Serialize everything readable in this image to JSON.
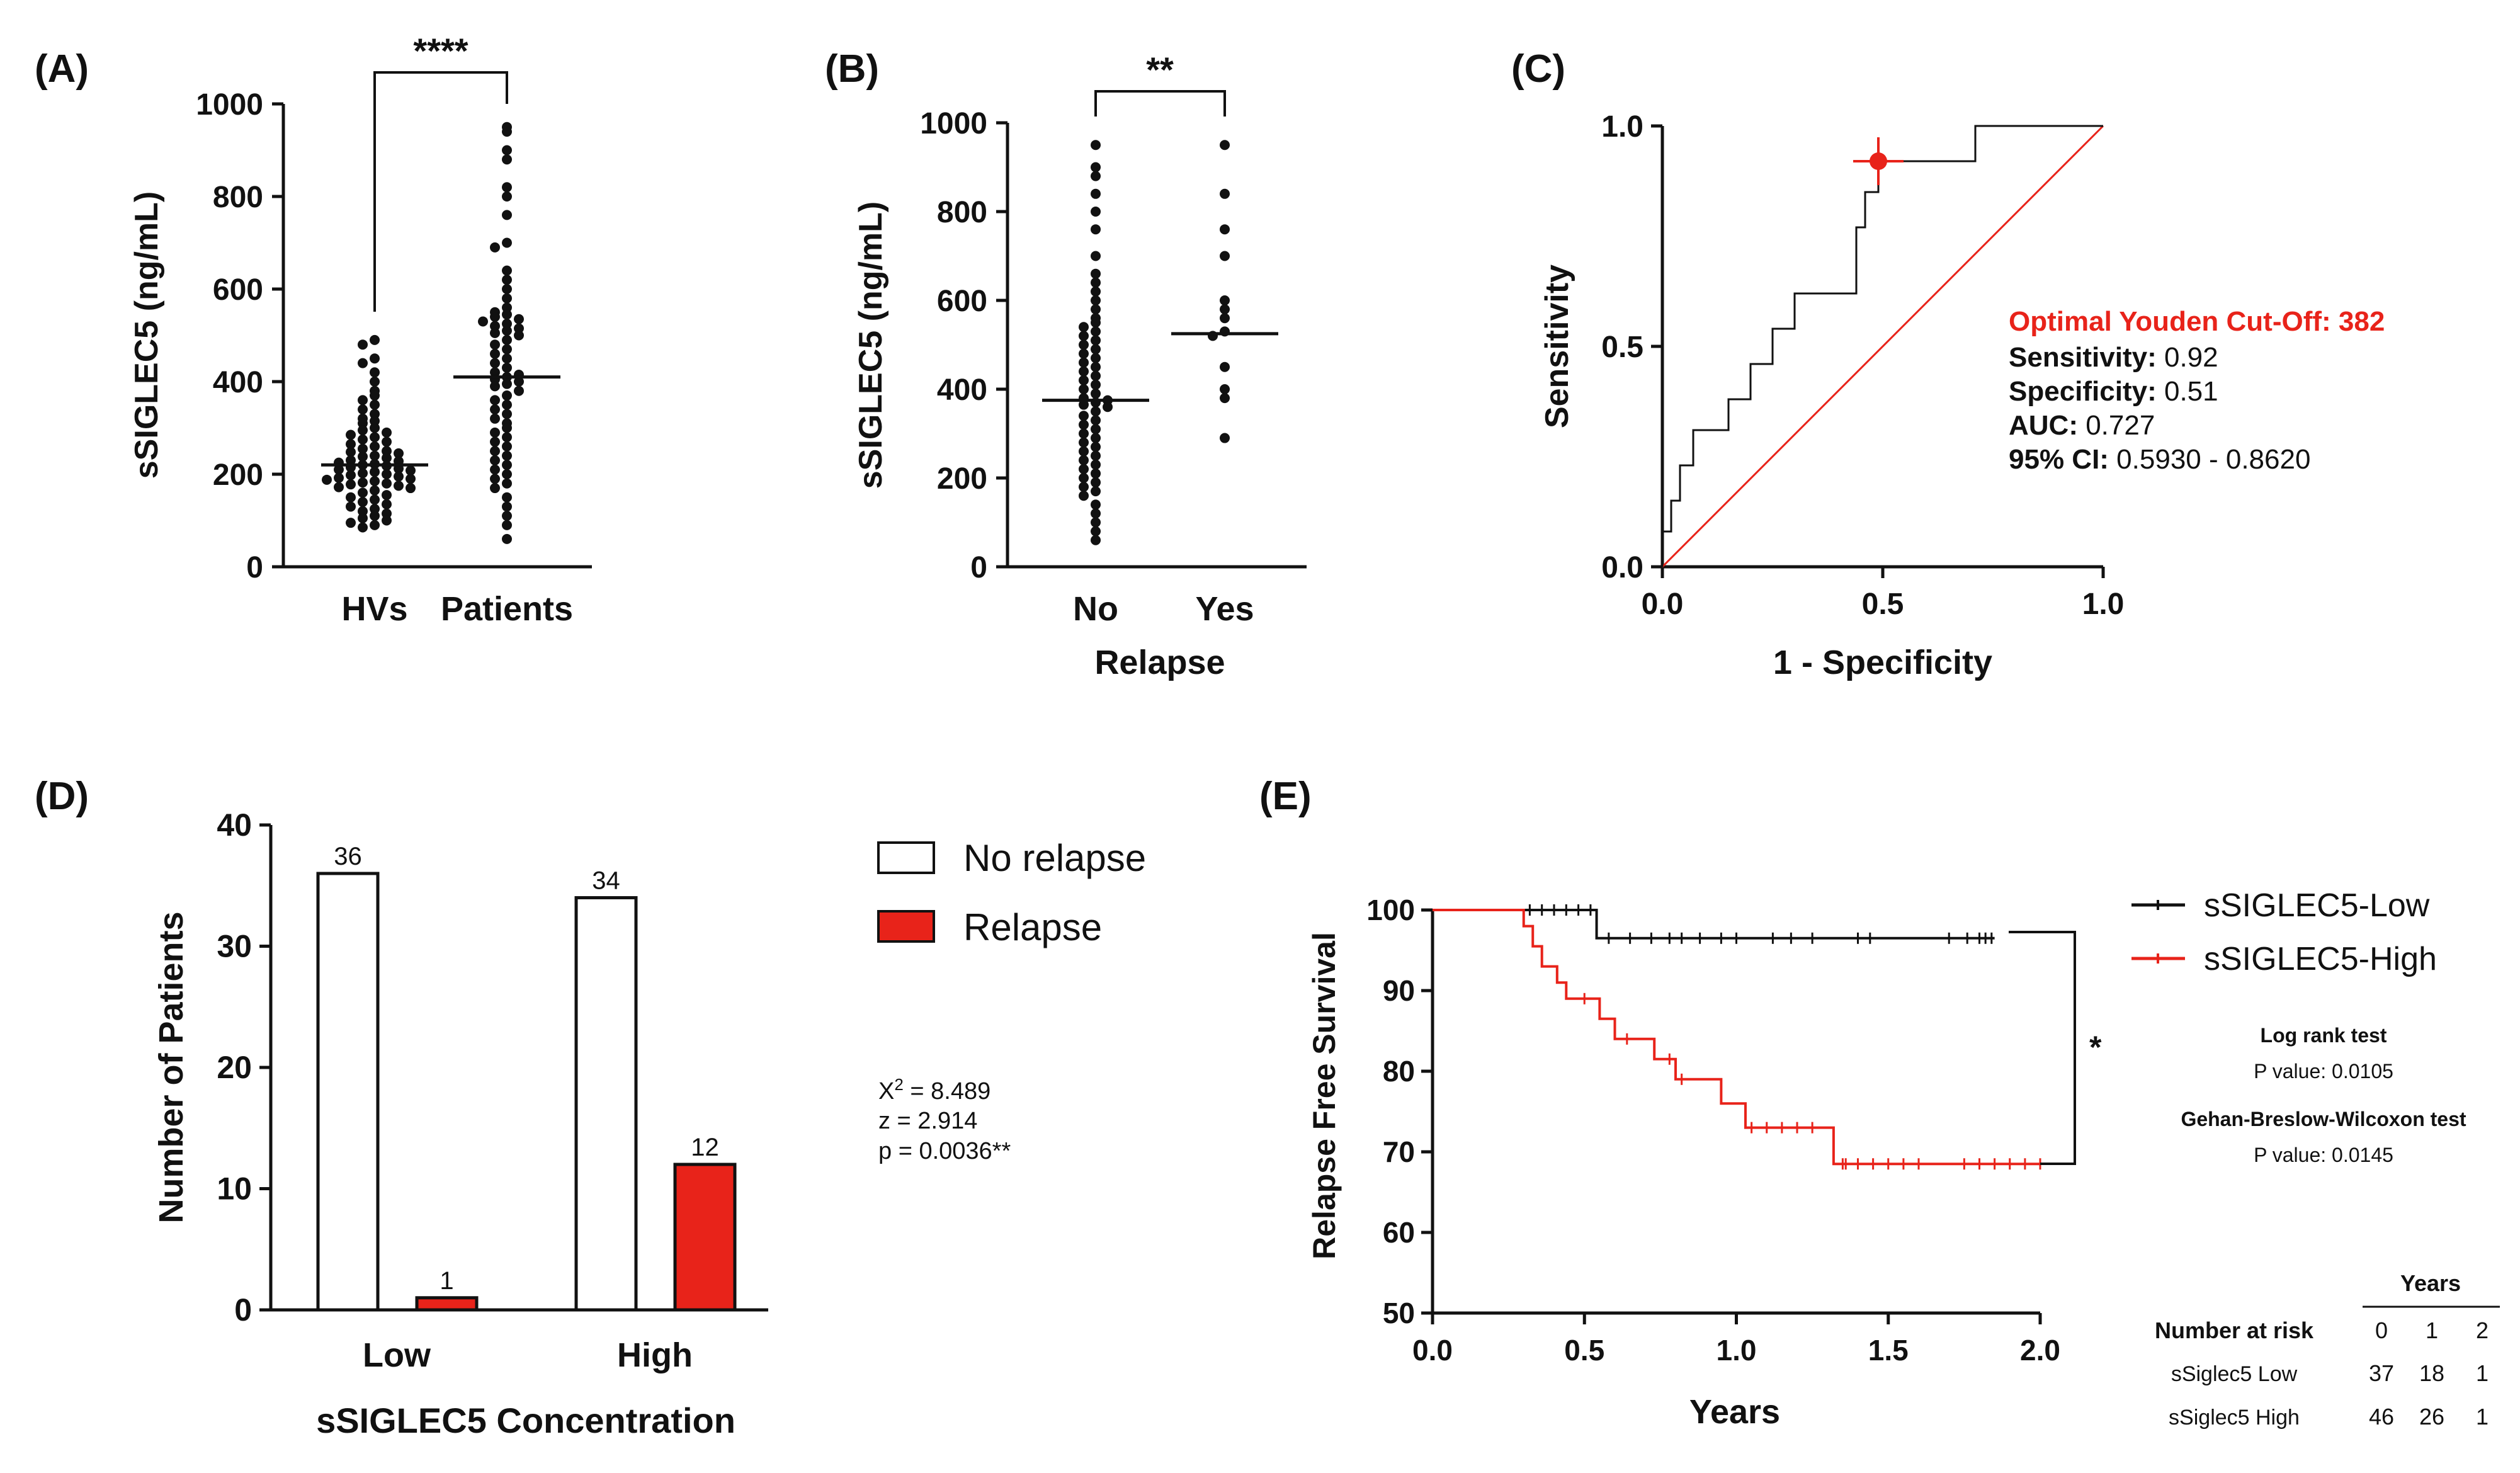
{
  "panel_labels": {
    "a": "(A)",
    "b": "(B)",
    "c": "(C)",
    "d": "(D)",
    "e": "(E)"
  },
  "colors": {
    "red": "#e8231a",
    "black": "#111111"
  },
  "chart_data": [
    {
      "id": "A",
      "type": "scatter",
      "ylabel": "sSIGLEC5 (ng/mL)",
      "ylim": [
        0,
        1000
      ],
      "yticks": [
        "0",
        "200",
        "400",
        "600",
        "800",
        "1000"
      ],
      "categories": [
        "HVs",
        "Patients"
      ],
      "significance": "****",
      "medians": [
        220,
        410
      ],
      "groups": [
        {
          "name": "HVs",
          "values": [
            490,
            480,
            450,
            440,
            420,
            400,
            380,
            370,
            360,
            350,
            340,
            330,
            320,
            315,
            310,
            300,
            295,
            290,
            285,
            280,
            275,
            270,
            265,
            260,
            255,
            250,
            248,
            245,
            240,
            238,
            235,
            230,
            228,
            225,
            222,
            220,
            218,
            215,
            212,
            210,
            208,
            205,
            202,
            200,
            198,
            195,
            192,
            190,
            188,
            185,
            182,
            180,
            178,
            175,
            172,
            170,
            165,
            160,
            155,
            150,
            145,
            140,
            135,
            130,
            125,
            120,
            115,
            110,
            105,
            100,
            95,
            90,
            85
          ]
        },
        {
          "name": "Patients",
          "values": [
            950,
            940,
            900,
            880,
            820,
            800,
            760,
            700,
            690,
            640,
            620,
            600,
            580,
            560,
            550,
            545,
            540,
            535,
            530,
            525,
            520,
            515,
            510,
            505,
            500,
            490,
            480,
            470,
            460,
            450,
            440,
            430,
            420,
            415,
            410,
            405,
            400,
            395,
            390,
            380,
            370,
            360,
            350,
            340,
            330,
            320,
            310,
            300,
            290,
            280,
            270,
            260,
            250,
            240,
            230,
            220,
            210,
            200,
            190,
            180,
            170,
            150,
            130,
            110,
            90,
            60
          ]
        }
      ]
    },
    {
      "id": "B",
      "type": "scatter",
      "ylabel": "sSIGLEC5 (ng/mL)",
      "xlabel": "Relapse",
      "ylim": [
        0,
        1000
      ],
      "yticks": [
        "0",
        "200",
        "400",
        "600",
        "800",
        "1000"
      ],
      "categories": [
        "No",
        "Yes"
      ],
      "significance": "**",
      "medians": [
        375,
        525
      ],
      "groups": [
        {
          "name": "No",
          "values": [
            950,
            900,
            880,
            840,
            800,
            760,
            700,
            660,
            640,
            620,
            600,
            580,
            560,
            550,
            540,
            530,
            520,
            510,
            500,
            490,
            480,
            470,
            460,
            450,
            440,
            430,
            420,
            410,
            400,
            390,
            380,
            375,
            370,
            365,
            360,
            350,
            340,
            330,
            320,
            310,
            300,
            290,
            280,
            270,
            260,
            250,
            240,
            230,
            220,
            210,
            200,
            190,
            180,
            170,
            160,
            140,
            120,
            100,
            80,
            60
          ]
        },
        {
          "name": "Yes",
          "values": [
            950,
            840,
            760,
            700,
            600,
            580,
            560,
            530,
            520,
            450,
            400,
            380,
            290
          ]
        }
      ]
    },
    {
      "id": "C",
      "type": "line",
      "xlabel": "1 - Specificity",
      "ylabel": "Sensitivity",
      "xlim": [
        0,
        1
      ],
      "ylim": [
        0,
        1
      ],
      "xticks": [
        "0.0",
        "0.5",
        "1.0"
      ],
      "yticks": [
        "0.0",
        "0.5",
        "1.0"
      ],
      "roc_points": [
        [
          0,
          0
        ],
        [
          0,
          0.08
        ],
        [
          0.02,
          0.08
        ],
        [
          0.02,
          0.15
        ],
        [
          0.04,
          0.15
        ],
        [
          0.04,
          0.23
        ],
        [
          0.07,
          0.23
        ],
        [
          0.07,
          0.31
        ],
        [
          0.15,
          0.31
        ],
        [
          0.15,
          0.38
        ],
        [
          0.2,
          0.38
        ],
        [
          0.2,
          0.46
        ],
        [
          0.25,
          0.46
        ],
        [
          0.25,
          0.54
        ],
        [
          0.3,
          0.54
        ],
        [
          0.3,
          0.62
        ],
        [
          0.44,
          0.62
        ],
        [
          0.44,
          0.77
        ],
        [
          0.46,
          0.77
        ],
        [
          0.46,
          0.85
        ],
        [
          0.49,
          0.85
        ],
        [
          0.49,
          0.92
        ],
        [
          0.71,
          0.92
        ],
        [
          0.71,
          1.0
        ],
        [
          1.0,
          1.0
        ]
      ],
      "reference_line": [
        [
          0,
          0
        ],
        [
          1,
          1
        ]
      ],
      "optimal_point": [
        0.49,
        0.92
      ],
      "annotations": {
        "title": "Optimal Youden Cut-Off: 382",
        "rows": [
          {
            "label": "Sensitivity:",
            "value": " 0.92"
          },
          {
            "label": "Specificity:",
            "value": " 0.51"
          },
          {
            "label": "AUC:",
            "value": " 0.727"
          },
          {
            "label": "95% CI:",
            "value": " 0.5930 - 0.8620"
          }
        ]
      }
    },
    {
      "id": "D",
      "type": "bar",
      "ylabel": "Number of Patients",
      "xlabel": "sSIGLEC5 Concentration",
      "ylim": [
        0,
        40
      ],
      "yticks": [
        "0",
        "10",
        "20",
        "30",
        "40"
      ],
      "categories": [
        "Low",
        "High"
      ],
      "series": [
        {
          "name": "No relapse",
          "values": [
            36,
            34
          ]
        },
        {
          "name": "Relapse",
          "values": [
            1,
            12
          ]
        }
      ],
      "value_labels": [
        [
          "36",
          "34"
        ],
        [
          "1",
          "12"
        ]
      ],
      "legend": [
        "No relapse",
        "Relapse"
      ],
      "stats": {
        "chi_prefix": "X",
        "chi_sup": "2",
        "chi_value": " = 8.489",
        "z": "z = 2.914",
        "p": "p = 0.0036**"
      }
    },
    {
      "id": "E",
      "type": "line",
      "xlabel": "Years",
      "ylabel": "Relapse Free Survival",
      "xlim": [
        0,
        2
      ],
      "ylim": [
        50,
        100
      ],
      "xticks": [
        "0.0",
        "0.5",
        "1.0",
        "1.5",
        "2.0"
      ],
      "yticks": [
        "50",
        "60",
        "70",
        "80",
        "90",
        "100"
      ],
      "series": [
        {
          "name": "sSIGLEC5-Low",
          "steps": [
            [
              0,
              100
            ],
            [
              0.54,
              100
            ],
            [
              0.54,
              96.5
            ],
            [
              1.85,
              96.5
            ]
          ],
          "censored": [
            0.32,
            0.36,
            0.4,
            0.44,
            0.48,
            0.52,
            0.58,
            0.65,
            0.72,
            0.78,
            0.82,
            0.88,
            0.95,
            1.0,
            1.12,
            1.18,
            1.25,
            1.4,
            1.44,
            1.7,
            1.76,
            1.8,
            1.82,
            1.84
          ]
        },
        {
          "name": "sSIGLEC5-High",
          "steps": [
            [
              0,
              100
            ],
            [
              0.3,
              100
            ],
            [
              0.3,
              98
            ],
            [
              0.33,
              98
            ],
            [
              0.33,
              95.5
            ],
            [
              0.36,
              95.5
            ],
            [
              0.36,
              93
            ],
            [
              0.41,
              93
            ],
            [
              0.41,
              91
            ],
            [
              0.44,
              91
            ],
            [
              0.44,
              89
            ],
            [
              0.55,
              89
            ],
            [
              0.55,
              86.5
            ],
            [
              0.6,
              86.5
            ],
            [
              0.6,
              84
            ],
            [
              0.73,
              84
            ],
            [
              0.73,
              81.5
            ],
            [
              0.8,
              81.5
            ],
            [
              0.8,
              79
            ],
            [
              0.95,
              79
            ],
            [
              0.95,
              76
            ],
            [
              1.03,
              76
            ],
            [
              1.03,
              73
            ],
            [
              1.32,
              73
            ],
            [
              1.32,
              68.5
            ],
            [
              2.0,
              68.5
            ]
          ],
          "censored": [
            0.5,
            0.64,
            0.78,
            0.82,
            1.05,
            1.1,
            1.15,
            1.2,
            1.25,
            1.35,
            1.36,
            1.4,
            1.45,
            1.5,
            1.55,
            1.6,
            1.75,
            1.8,
            1.85,
            1.9,
            1.95,
            2.0
          ]
        }
      ],
      "legend": [
        "sSIGLEC5-Low",
        "sSIGLEC5-High"
      ],
      "significance": "*",
      "tests": [
        {
          "title": "Log rank test",
          "p": "P value: 0.0105"
        },
        {
          "title": "Gehan-Breslow-Wilcoxon test",
          "p": "P value: 0.0145"
        }
      ],
      "risk_table": {
        "header": "Years",
        "row_label": "Number at risk",
        "columns": [
          "0",
          "1",
          "2"
        ],
        "rows": [
          {
            "name": "sSiglec5 Low",
            "values": [
              "37",
              "18",
              "1"
            ]
          },
          {
            "name": "sSiglec5 High",
            "values": [
              "46",
              "26",
              "1"
            ]
          }
        ]
      }
    }
  ]
}
